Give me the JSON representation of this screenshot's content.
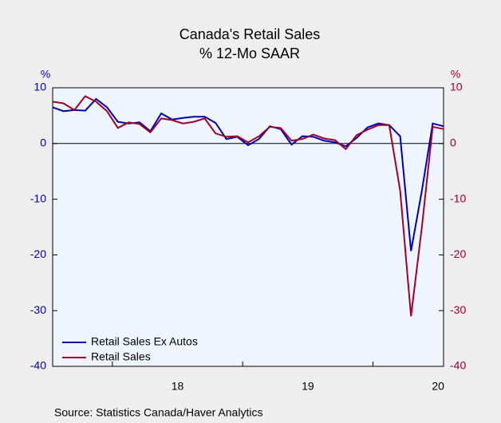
{
  "chart_data": {
    "type": "line",
    "title": "Canada's Retail Sales",
    "subtitle": "% 12-Mo SAAR",
    "y_label": "%",
    "y2_label": "%",
    "source": "Source:  Statistics Canada/Haver Analytics",
    "categories": [
      null,
      null,
      null,
      null,
      null,
      null,
      null,
      null,
      null,
      null,
      null,
      null,
      "18",
      null,
      null,
      null,
      null,
      null,
      null,
      null,
      null,
      null,
      null,
      null,
      "19",
      null,
      null,
      null,
      null,
      null,
      null,
      null,
      null,
      null,
      null,
      null,
      "20"
    ],
    "series": [
      {
        "name": "Retail Sales Ex Autos",
        "color": "#0000b0",
        "axis": "y",
        "values": [
          6.5,
          5.8,
          6.0,
          5.9,
          8.0,
          6.5,
          3.9,
          3.6,
          3.8,
          2.2,
          5.4,
          4.3,
          4.6,
          4.8,
          4.8,
          3.7,
          0.8,
          1.2,
          -0.3,
          0.8,
          3.1,
          2.6,
          -0.2,
          1.3,
          1.2,
          0.5,
          0.2,
          -0.5,
          1.0,
          2.9,
          3.6,
          3.3,
          1.3,
          -19.3,
          -8.5,
          3.6,
          3.1
        ]
      },
      {
        "name": "Retail Sales",
        "color": "#a0002a",
        "axis": "y2",
        "values": [
          7.5,
          7.2,
          6.0,
          8.5,
          7.5,
          5.8,
          2.8,
          3.8,
          3.5,
          2.0,
          4.5,
          4.2,
          3.6,
          3.9,
          4.5,
          1.8,
          1.2,
          1.3,
          0.2,
          1.3,
          3.0,
          2.8,
          0.5,
          0.8,
          1.6,
          0.9,
          0.6,
          -1.0,
          1.5,
          2.5,
          3.3,
          3.3,
          -8.5,
          -31.0,
          -15.0,
          3.0,
          2.6
        ]
      }
    ],
    "ylim": [
      -40,
      10
    ],
    "yticks": [
      -40,
      -30,
      -20,
      -10,
      0,
      10
    ],
    "y2lim": [
      -40,
      10
    ],
    "y2ticks": [
      -40,
      -30,
      -20,
      -10,
      0,
      10
    ],
    "legend": "lower left"
  }
}
